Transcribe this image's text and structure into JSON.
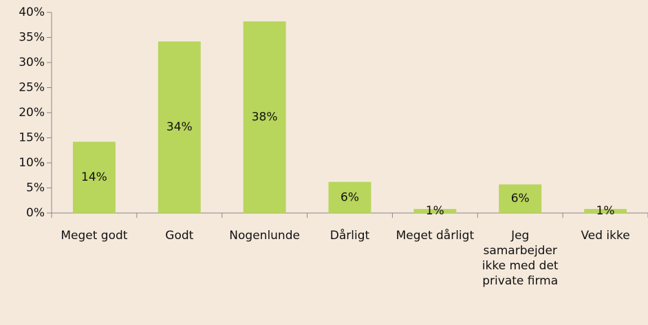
{
  "chart_data": {
    "type": "bar",
    "categories": [
      "Meget godt",
      "Godt",
      "Nogenlunde",
      "Dårligt",
      "Meget dårligt",
      "Jeg samarbejder ikke med det private firma",
      "Ved ikke"
    ],
    "values": [
      14.2,
      34.2,
      38.2,
      6.2,
      0.8,
      5.7,
      0.8
    ],
    "value_labels": [
      "14%",
      "34%",
      "38%",
      "6%",
      "1%",
      "6%",
      "1%"
    ],
    "color": "#b8d55c",
    "ylim": [
      0,
      40
    ],
    "yticks": [
      {
        "value": 0,
        "label": "0%"
      },
      {
        "value": 5,
        "label": "5%"
      },
      {
        "value": 10,
        "label": "10%"
      },
      {
        "value": 15,
        "label": "15%"
      },
      {
        "value": 20,
        "label": "20%"
      },
      {
        "value": 25,
        "label": "25%"
      },
      {
        "value": 30,
        "label": "30%"
      },
      {
        "value": 35,
        "label": "35%"
      },
      {
        "value": 40,
        "label": "40%"
      }
    ],
    "grid": false
  }
}
